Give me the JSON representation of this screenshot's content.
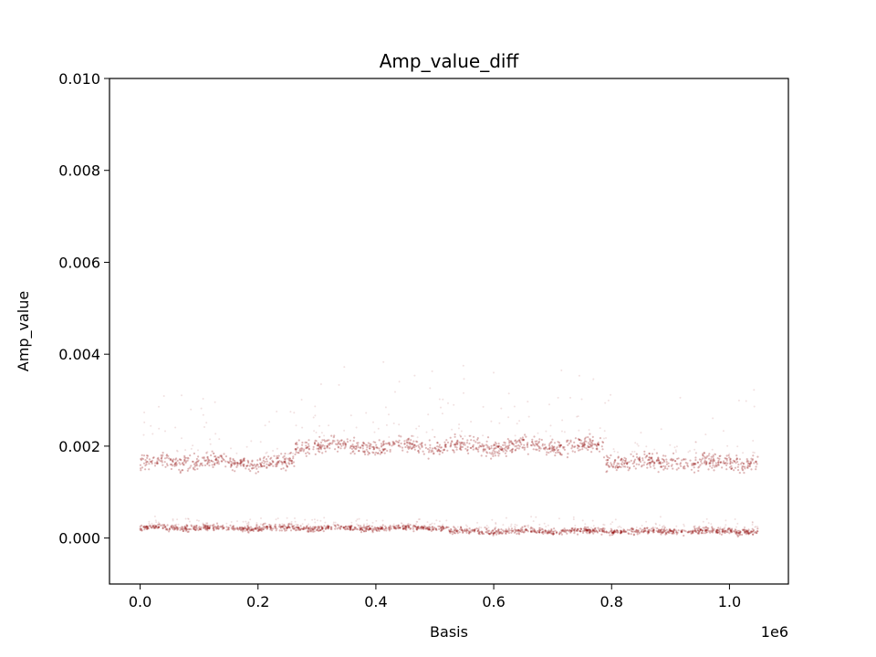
{
  "chart_data": {
    "type": "scatter",
    "title": "Amp_value_diff",
    "xlabel": "Basis",
    "ylabel": "Amp_value",
    "x_offset_label": "1e6",
    "xlim": [
      -0.052,
      1.1
    ],
    "ylim": [
      -0.001,
      0.01
    ],
    "x_ticks": [
      0.0,
      0.2,
      0.4,
      0.6,
      0.8,
      1.0
    ],
    "x_tick_labels": [
      "0.0",
      "0.2",
      "0.4",
      "0.6",
      "0.8",
      "1.0"
    ],
    "y_ticks": [
      0.0,
      0.002,
      0.004,
      0.006,
      0.008,
      0.01
    ],
    "y_tick_labels": [
      "0.000",
      "0.002",
      "0.004",
      "0.006",
      "0.008",
      "0.010"
    ],
    "grid": false,
    "marker_color": "#8b0000",
    "series": [
      {
        "bands": [
          {
            "x_start": 0.0,
            "x_end": 0.262,
            "center": 0.00165,
            "spread": 0.0003,
            "outlier_max": 0.0034
          },
          {
            "x_start": 0.262,
            "x_end": 0.786,
            "center": 0.002,
            "spread": 0.00032,
            "outlier_max": 0.0039
          },
          {
            "x_start": 0.786,
            "x_end": 1.048,
            "center": 0.00165,
            "spread": 0.0003,
            "outlier_max": 0.0034
          }
        ]
      },
      {
        "bands": [
          {
            "x_start": 0.0,
            "x_end": 0.524,
            "center": 0.00022,
            "spread": 0.00012,
            "outlier_max": 0.0005
          },
          {
            "x_start": 0.524,
            "x_end": 1.048,
            "center": 0.00015,
            "spread": 0.00012,
            "outlier_max": 0.0005
          }
        ]
      }
    ]
  }
}
